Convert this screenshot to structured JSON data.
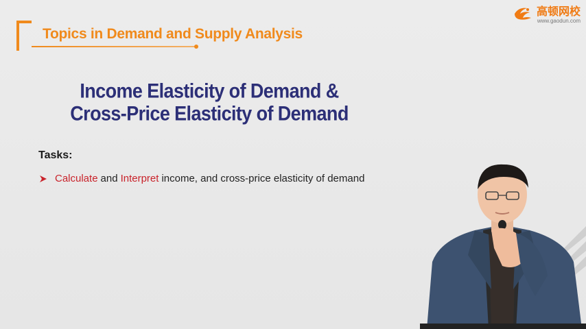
{
  "header": {
    "title": "Topics in Demand and Supply Analysis",
    "accent_color": "#f08a1c"
  },
  "logo": {
    "name": "高顿网校",
    "url": "www.gaodun.com",
    "icon": "gaodun-logo-icon"
  },
  "slide": {
    "title_line1": "Income Elasticity of Demand &",
    "title_line2": "Cross-Price Elasticity of Demand",
    "title_color": "#2c2f77",
    "tasks_label": "Tasks:",
    "task": {
      "bullet_icon": "arrow-bullet-icon",
      "keyword1": "Calculate",
      "connector": "and",
      "keyword2": "Interpret",
      "rest": "income, and cross-price elasticity of demand",
      "keyword_color": "#c9232b"
    }
  },
  "presenter": {
    "description_icon": "presenter-video"
  }
}
